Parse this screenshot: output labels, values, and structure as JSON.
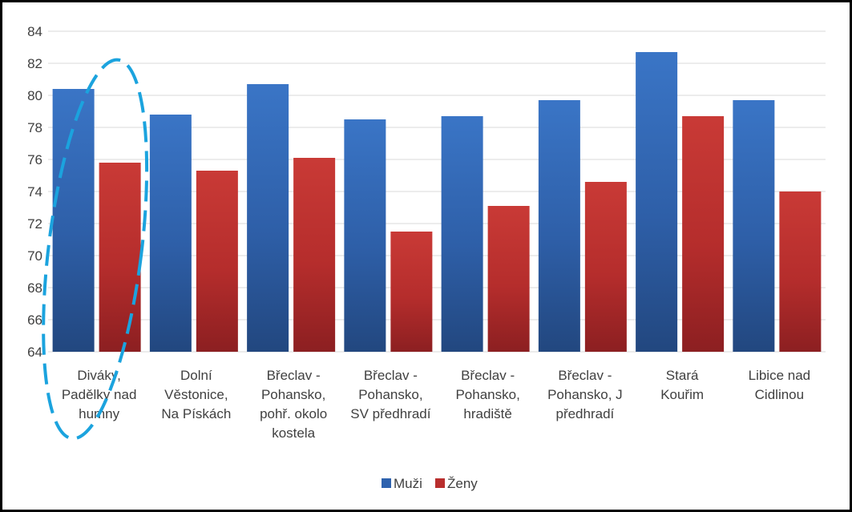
{
  "chart_data": {
    "type": "bar",
    "categories": [
      [
        "Diváky,",
        "Padělky nad",
        "humny"
      ],
      [
        "Dolní",
        "Věstonice,",
        "Na Pískách"
      ],
      [
        "Břeclav -",
        "Pohansko,",
        "pohř. okolo",
        "kostela"
      ],
      [
        "Břeclav -",
        "Pohansko,",
        "SV předhradí"
      ],
      [
        "Břeclav -",
        "Pohansko,",
        "hradiště"
      ],
      [
        "Břeclav -",
        "Pohansko, J",
        "předhradí"
      ],
      [
        "Stará",
        "Kouřim"
      ],
      [
        "Libice nad",
        "Cidlinou"
      ]
    ],
    "series": [
      {
        "name": "Muži",
        "color": "#2E62AE",
        "values": [
          80.4,
          78.8,
          80.7,
          78.5,
          78.7,
          79.7,
          82.7,
          79.7
        ]
      },
      {
        "name": "Ženy",
        "color": "#B92F2E",
        "values": [
          75.8,
          75.3,
          76.1,
          71.5,
          73.1,
          74.6,
          78.7,
          74.0
        ]
      }
    ],
    "ylim": [
      64,
      84
    ],
    "yticks": [
      "64",
      "66",
      "68",
      "70",
      "72",
      "74",
      "76",
      "78",
      "80",
      "82",
      "84"
    ],
    "grid": true,
    "legend_position": "bottom",
    "annotation": {
      "shape": "dashed-ellipse",
      "color": "#1BA3DE",
      "target_category_index": 0
    }
  }
}
